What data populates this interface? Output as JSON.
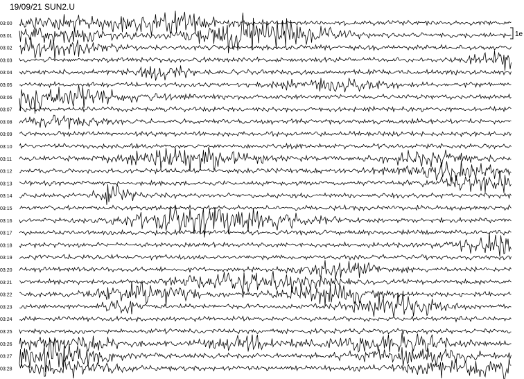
{
  "header": {
    "title": "19/09/21 SUN2.U"
  },
  "row_labels": [
    "03:00",
    "03:01",
    "03:02",
    "03:03",
    "03:04",
    "03:05",
    "03:06",
    "03:07",
    "03:08",
    "03:09",
    "03:10",
    "03:11",
    "03:12",
    "03:13",
    "03:14",
    "03:15",
    "03:16",
    "03:17",
    "03:18",
    "03:19",
    "03:20",
    "03:21",
    "03:22",
    "03:23",
    "03:24",
    "03:25",
    "03:26",
    "03:27",
    "03:28"
  ],
  "scale": {
    "label": "1e"
  }
}
